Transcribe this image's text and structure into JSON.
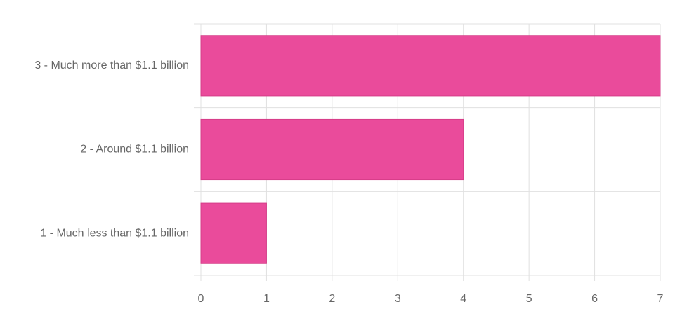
{
  "chart_data": {
    "type": "bar",
    "orientation": "horizontal",
    "categories": [
      "3 - Much more than $1.1 billion",
      "2 - Around $1.1 billion",
      "1 - Much less than $1.1 billion"
    ],
    "values": [
      7,
      4,
      1
    ],
    "color": "#ea4b9b",
    "xlim": [
      0,
      7
    ],
    "xticks": [
      0,
      1,
      2,
      3,
      4,
      5,
      6,
      7
    ],
    "grid": true
  }
}
